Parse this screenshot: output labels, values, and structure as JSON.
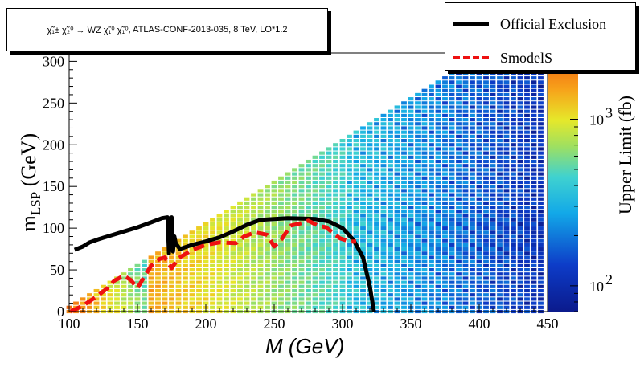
{
  "chart_data": {
    "type": "heatmap",
    "title_parts": {
      "prefix": "χ̃",
      "process": "χ̃₁± χ̃₂⁰ → WZ χ̃₁⁰ χ̃₁⁰",
      "rest": ", ATLAS-CONF-2013-035, 8 TeV, LO*1.2"
    },
    "xlabel": "M (GeV)",
    "ylabel_main": "m",
    "ylabel_sub": "LSP",
    "ylabel_unit": " (GeV)",
    "zlabel": "Upper Limit (fb)",
    "xlim": [
      100,
      450
    ],
    "ylim": [
      0,
      310
    ],
    "xticks": [
      "100",
      "150",
      "200",
      "250",
      "300",
      "350",
      "400",
      "450"
    ],
    "yticks": [
      "0",
      "50",
      "100",
      "150",
      "200",
      "250",
      "300"
    ],
    "zscale": "log",
    "zlim": [
      70,
      2500
    ],
    "zticks": [
      {
        "value": 100,
        "base": "10",
        "exp": "2"
      },
      {
        "value": 1000,
        "base": "10",
        "exp": "3"
      }
    ],
    "legend": {
      "placement": "top-right",
      "entries": [
        {
          "label": "Official Exclusion",
          "color": "#000000",
          "style": "solid"
        },
        {
          "label": "SmodelS",
          "color": "#ee1111",
          "style": "dashed"
        }
      ]
    },
    "official_exclusion": [
      [
        104,
        74
      ],
      [
        110,
        78
      ],
      [
        115,
        83
      ],
      [
        122,
        87
      ],
      [
        130,
        91
      ],
      [
        140,
        96
      ],
      [
        150,
        101
      ],
      [
        160,
        107
      ],
      [
        168,
        112
      ],
      [
        172,
        113
      ],
      [
        173,
        70
      ],
      [
        174,
        112
      ],
      [
        175,
        113
      ],
      [
        176,
        72
      ],
      [
        177,
        90
      ],
      [
        178,
        82
      ],
      [
        181,
        75
      ],
      [
        190,
        80
      ],
      [
        200,
        84
      ],
      [
        210,
        89
      ],
      [
        220,
        96
      ],
      [
        230,
        104
      ],
      [
        240,
        110
      ],
      [
        260,
        112
      ],
      [
        280,
        111
      ],
      [
        290,
        108
      ],
      [
        300,
        100
      ],
      [
        308,
        86
      ],
      [
        315,
        65
      ],
      [
        320,
        30
      ],
      [
        323,
        0
      ]
    ],
    "smodels": [
      [
        101,
        0
      ],
      [
        110,
        7
      ],
      [
        120,
        18
      ],
      [
        128,
        28
      ],
      [
        133,
        37
      ],
      [
        140,
        43
      ],
      [
        145,
        38
      ],
      [
        150,
        28
      ],
      [
        155,
        42
      ],
      [
        160,
        55
      ],
      [
        166,
        63
      ],
      [
        170,
        65
      ],
      [
        175,
        52
      ],
      [
        180,
        64
      ],
      [
        190,
        74
      ],
      [
        200,
        80
      ],
      [
        210,
        83
      ],
      [
        222,
        82
      ],
      [
        228,
        90
      ],
      [
        236,
        95
      ],
      [
        245,
        92
      ],
      [
        250,
        78
      ],
      [
        256,
        88
      ],
      [
        262,
        103
      ],
      [
        270,
        106
      ],
      [
        275,
        109
      ],
      [
        282,
        103
      ],
      [
        288,
        101
      ],
      [
        298,
        88
      ],
      [
        305,
        84
      ],
      [
        310,
        84
      ]
    ]
  }
}
